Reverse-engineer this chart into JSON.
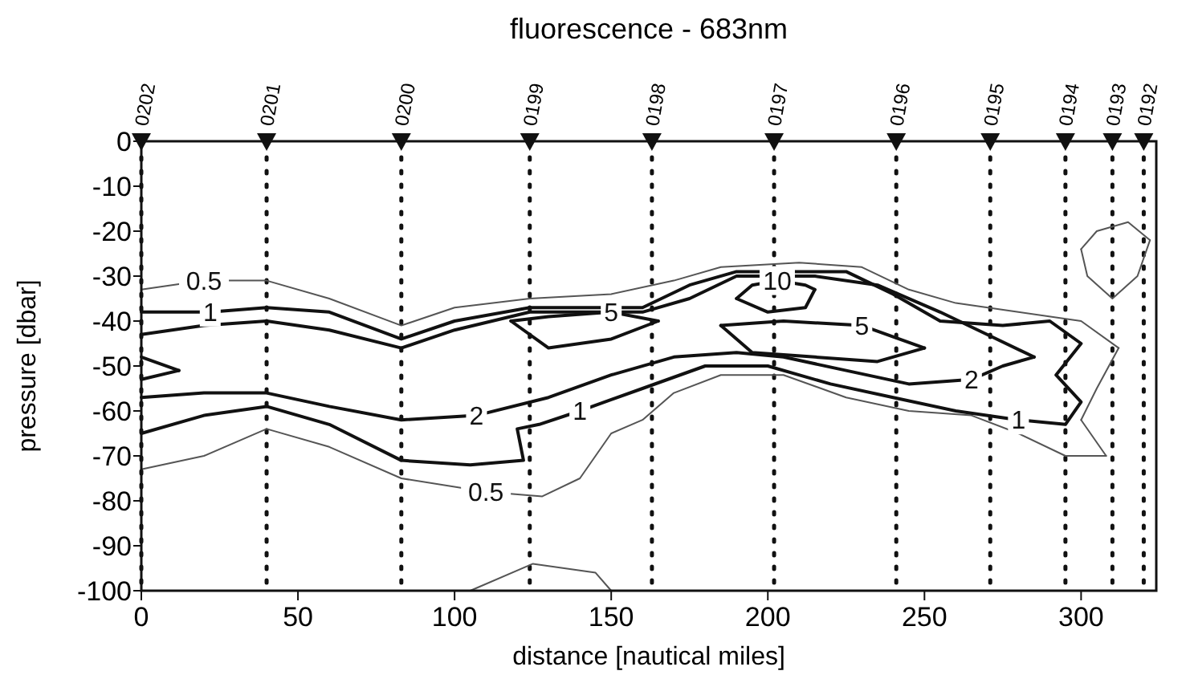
{
  "chart_data": {
    "type": "line",
    "title": "fluorescence - 683nm",
    "xlabel": "distance [nautical miles]",
    "ylabel": "pressure [dbar]",
    "xlim": [
      0,
      324
    ],
    "ylim": [
      -100,
      0
    ],
    "xticks": [
      0,
      50,
      100,
      150,
      200,
      250,
      300
    ],
    "yticks": [
      0,
      -10,
      -20,
      -30,
      -40,
      -50,
      -60,
      -70,
      -80,
      -90,
      -100
    ],
    "series": [
      {
        "color": "#555555",
        "x": [
          0,
          20,
          40,
          60,
          83,
          100,
          124,
          150,
          170,
          185,
          210,
          230,
          245,
          260,
          280,
          300,
          312
        ],
        "values": [
          -33,
          -31,
          -31,
          -35,
          -41,
          -37,
          -35,
          -34,
          -31,
          -28,
          -27,
          -28,
          -33,
          -36,
          -38,
          -40,
          -46
        ]
      },
      {
        "color": "#555555",
        "x": [
          0,
          20,
          40,
          60,
          83,
          110,
          128,
          140,
          150,
          160,
          170,
          185,
          205,
          225,
          245,
          265,
          280,
          295,
          308
        ],
        "values": [
          -73,
          -70,
          -64,
          -68,
          -75,
          -78,
          -79,
          -75,
          -65,
          -62,
          -56,
          -52,
          -52,
          -57,
          -60,
          -61,
          -65,
          -70,
          -70
        ]
      },
      {
        "color": "#555555",
        "x": [
          300,
          305,
          312
        ],
        "values": [
          -62,
          -55,
          -46
        ]
      },
      {
        "color": "#555555",
        "x": [
          300,
          308
        ],
        "values": [
          -62,
          -70
        ]
      },
      {
        "color": "#555555",
        "x": [
          300,
          305,
          315,
          322
        ],
        "values": [
          -24,
          -20,
          -18,
          -22
        ]
      },
      {
        "color": "#555555",
        "x": [
          300,
          302,
          310,
          318,
          322
        ],
        "values": [
          -24,
          -30,
          -35,
          -30,
          -22
        ]
      },
      {
        "color": "#555555",
        "x": [
          105,
          125,
          145,
          150
        ],
        "values": [
          -100,
          -94,
          -96,
          -100
        ]
      },
      {
        "color": "#111111",
        "x": [
          0,
          20,
          40,
          60,
          83,
          105,
          122,
          120,
          127,
          140,
          160,
          180,
          200,
          220,
          240,
          260,
          280,
          295,
          300,
          292,
          300,
          290,
          275,
          255,
          240,
          225,
          190,
          175,
          160,
          124,
          100,
          83,
          60,
          40,
          22,
          0
        ],
        "values": [
          -65,
          -61,
          -59,
          -63,
          -71,
          -72,
          -71,
          -64,
          -63,
          -60,
          -55,
          -50,
          -50,
          -54,
          -57,
          -60,
          -62,
          -63,
          -58,
          -52,
          -45,
          -40,
          -41,
          -40,
          -34,
          -29,
          -29,
          -32,
          -37,
          -37,
          -40,
          -44,
          -38,
          -37,
          -38,
          -38
        ]
      },
      {
        "color": "#111111",
        "x": [
          0,
          20,
          40,
          60,
          83,
          107,
          130,
          150,
          170,
          190,
          205,
          225,
          245,
          265,
          275,
          285
        ],
        "values": [
          -57,
          -56,
          -56,
          -59,
          -62,
          -61,
          -57,
          -52,
          -48,
          -47,
          -48,
          -51,
          -54,
          -53,
          -50,
          -48
        ]
      },
      {
        "color": "#111111",
        "x": [
          0,
          20,
          40,
          60,
          83,
          100,
          124,
          160,
          175,
          190,
          215,
          235,
          255,
          270,
          285
        ],
        "values": [
          -43,
          -41,
          -40,
          -42,
          -46,
          -42,
          -38,
          -38,
          -35,
          -30,
          -30,
          -32,
          -38,
          -43,
          -48
        ]
      },
      {
        "color": "#111111",
        "x": [
          0,
          12
        ],
        "values": [
          -48,
          -51
        ]
      },
      {
        "color": "#111111",
        "x": [
          0,
          12
        ],
        "values": [
          -53,
          -51
        ]
      },
      {
        "color": "#111111",
        "x": [
          118,
          130,
          150,
          165
        ],
        "values": [
          -40,
          -39,
          -38,
          -40
        ]
      },
      {
        "color": "#111111",
        "x": [
          118,
          130,
          150,
          165
        ],
        "values": [
          -40,
          -46,
          -44,
          -40
        ]
      },
      {
        "color": "#111111",
        "x": [
          185,
          205,
          230,
          250
        ],
        "values": [
          -41,
          -40,
          -41,
          -46
        ]
      },
      {
        "color": "#111111",
        "x": [
          185,
          195,
          215,
          235,
          250
        ],
        "values": [
          -41,
          -47,
          -48,
          -49,
          -46
        ]
      },
      {
        "color": "#111111",
        "x": [
          190,
          195,
          203,
          212,
          215
        ],
        "values": [
          -35,
          -32,
          -31,
          -32,
          -33
        ]
      },
      {
        "color": "#111111",
        "x": [
          190,
          200,
          212,
          215
        ],
        "values": [
          -35,
          -38,
          -37,
          -33
        ]
      }
    ],
    "annotations": [
      {
        "text": "0.5",
        "x": 20,
        "y": -31
      },
      {
        "text": "0.5",
        "x": 110,
        "y": -78
      },
      {
        "text": "1",
        "x": 22,
        "y": -38
      },
      {
        "text": "1",
        "x": 140,
        "y": -60
      },
      {
        "text": "1",
        "x": 280,
        "y": -62
      },
      {
        "text": "2",
        "x": 107,
        "y": -61
      },
      {
        "text": "2",
        "x": 265,
        "y": -53
      },
      {
        "text": "5",
        "x": 150,
        "y": -38
      },
      {
        "text": "5",
        "x": 230,
        "y": -41
      },
      {
        "text": "10",
        "x": 203,
        "y": -31
      },
      {
        "text": "0202",
        "x": 0,
        "y": 0
      },
      {
        "text": "0201",
        "x": 40,
        "y": 0
      },
      {
        "text": "0200",
        "x": 83,
        "y": 0
      },
      {
        "text": "0199",
        "x": 124,
        "y": 0
      },
      {
        "text": "0198",
        "x": 163,
        "y": 0
      },
      {
        "text": "0197",
        "x": 202,
        "y": 0
      },
      {
        "text": "0196",
        "x": 241,
        "y": 0
      },
      {
        "text": "0195",
        "x": 271,
        "y": 0
      },
      {
        "text": "0194",
        "x": 295,
        "y": 0
      },
      {
        "text": "0193",
        "x": 310,
        "y": 0
      },
      {
        "text": "0192",
        "x": 320,
        "y": 0
      }
    ],
    "ref_lines": [
      {
        "axis": "x",
        "value": 0,
        "line_style": "dotted"
      },
      {
        "axis": "x",
        "value": 40,
        "line_style": "dotted"
      },
      {
        "axis": "x",
        "value": 83,
        "line_style": "dotted"
      },
      {
        "axis": "x",
        "value": 124,
        "line_style": "dotted"
      },
      {
        "axis": "x",
        "value": 163,
        "line_style": "dotted"
      },
      {
        "axis": "x",
        "value": 202,
        "line_style": "dotted"
      },
      {
        "axis": "x",
        "value": 241,
        "line_style": "dotted"
      },
      {
        "axis": "x",
        "value": 271,
        "line_style": "dotted"
      },
      {
        "axis": "x",
        "value": 295,
        "line_style": "dotted"
      },
      {
        "axis": "x",
        "value": 310,
        "line_style": "dotted"
      },
      {
        "axis": "x",
        "value": 320,
        "line_style": "dotted"
      }
    ]
  }
}
